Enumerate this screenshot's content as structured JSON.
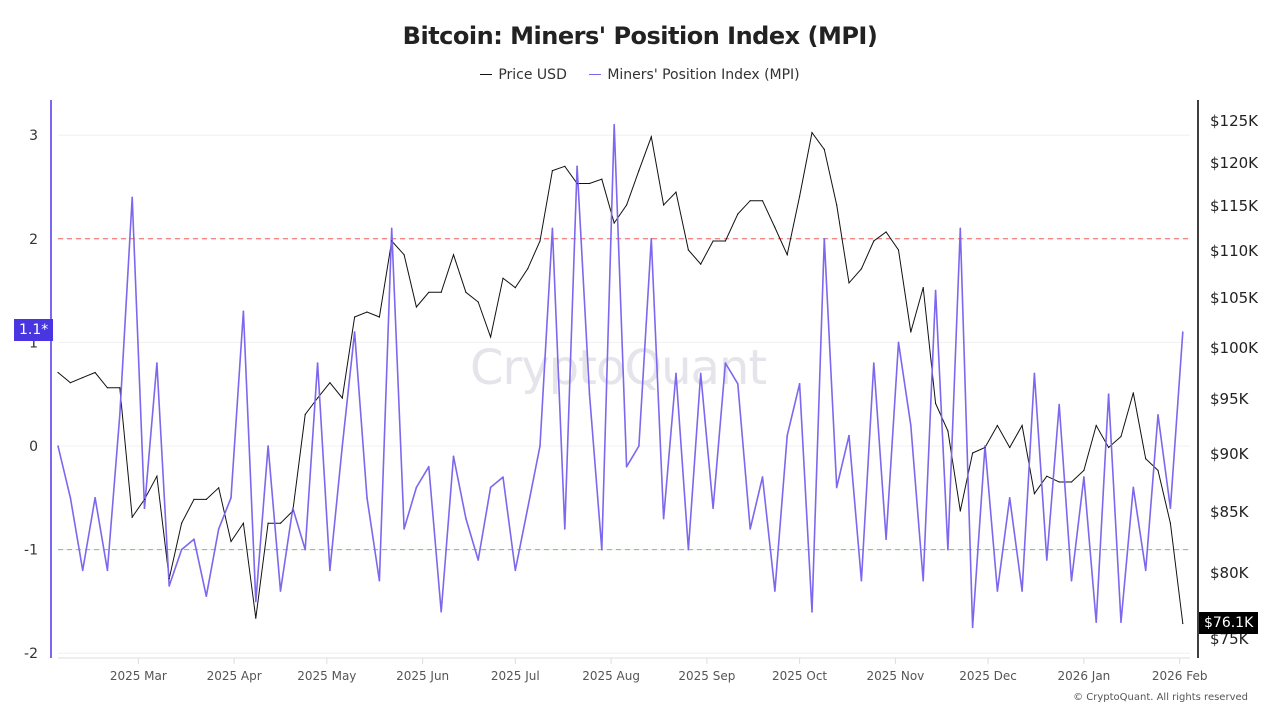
{
  "colors": {
    "price": "#111111",
    "mpi": "#7b68ee",
    "mpi_axis": "#7b68ee",
    "badge_mpi": "#4a36e0",
    "badge_price": "#000000",
    "upper_ref": "#f06060",
    "lower_ref": "#7cc66a"
  },
  "watermark": "CryptoQuant",
  "footer": "© CryptoQuant. All rights reserved",
  "current_mpi_label": "1.1*",
  "current_price_label": "$76.1K",
  "chart_data": {
    "type": "line",
    "title": "Bitcoin: Miners' Position Index (MPI)",
    "legend": [
      "Price USD",
      "Miners' Position Index (MPI)"
    ],
    "legend_position": "top-center",
    "x_tick_labels": [
      "2025 Mar",
      "2025 Apr",
      "2025 May",
      "2025 Jun",
      "2025 Jul",
      "2025 Aug",
      "2025 Sep",
      "2025 Oct",
      "2025 Nov",
      "2025 Dec",
      "2026 Jan",
      "2026 Feb"
    ],
    "x_tick_dates": [
      "2025-03-01",
      "2025-04-01",
      "2025-05-01",
      "2025-06-01",
      "2025-07-01",
      "2025-08-01",
      "2025-09-01",
      "2025-10-01",
      "2025-11-01",
      "2025-12-01",
      "2026-01-01",
      "2026-02-01"
    ],
    "y_left": {
      "ticks": [
        3,
        2,
        1,
        0,
        -1,
        -2
      ],
      "range": [
        -2,
        3.3
      ]
    },
    "y_right": {
      "tick_labels": [
        "$125K",
        "$120K",
        "$115K",
        "$110K",
        "$105K",
        "$100K",
        "$95K",
        "$90K",
        "$85K",
        "$80K",
        "$75K"
      ],
      "tick_values": [
        125,
        120,
        115,
        110,
        105,
        100,
        95,
        90,
        85,
        80,
        75
      ],
      "unit": "USD thousands"
    },
    "reference_lines": [
      {
        "axis": "left",
        "value": 2,
        "style": "dashed",
        "color": "#f06060"
      },
      {
        "axis": "left",
        "value": -1,
        "style": "dashed",
        "color": "#7cc66a"
      }
    ],
    "grid": "horizontal",
    "x": [
      "2025-02-03",
      "2025-02-07",
      "2025-02-11",
      "2025-02-15",
      "2025-02-19",
      "2025-02-23",
      "2025-02-27",
      "2025-03-03",
      "2025-03-07",
      "2025-03-11",
      "2025-03-15",
      "2025-03-19",
      "2025-03-23",
      "2025-03-27",
      "2025-03-31",
      "2025-04-04",
      "2025-04-08",
      "2025-04-12",
      "2025-04-16",
      "2025-04-20",
      "2025-04-24",
      "2025-04-28",
      "2025-05-02",
      "2025-05-06",
      "2025-05-10",
      "2025-05-14",
      "2025-05-18",
      "2025-05-22",
      "2025-05-26",
      "2025-05-30",
      "2025-06-03",
      "2025-06-07",
      "2025-06-11",
      "2025-06-15",
      "2025-06-19",
      "2025-06-23",
      "2025-06-27",
      "2025-07-01",
      "2025-07-05",
      "2025-07-09",
      "2025-07-13",
      "2025-07-17",
      "2025-07-21",
      "2025-07-25",
      "2025-07-29",
      "2025-08-02",
      "2025-08-06",
      "2025-08-10",
      "2025-08-14",
      "2025-08-18",
      "2025-08-22",
      "2025-08-26",
      "2025-08-30",
      "2025-09-03",
      "2025-09-07",
      "2025-09-11",
      "2025-09-15",
      "2025-09-19",
      "2025-09-23",
      "2025-09-27",
      "2025-10-01",
      "2025-10-05",
      "2025-10-09",
      "2025-10-13",
      "2025-10-17",
      "2025-10-21",
      "2025-10-25",
      "2025-10-29",
      "2025-11-02",
      "2025-11-06",
      "2025-11-10",
      "2025-11-14",
      "2025-11-18",
      "2025-11-22",
      "2025-11-26",
      "2025-11-30",
      "2025-12-04",
      "2025-12-08",
      "2025-12-12",
      "2025-12-16",
      "2025-12-20",
      "2025-12-24",
      "2025-12-28",
      "2026-01-01",
      "2026-01-05",
      "2026-01-09",
      "2026-01-13",
      "2026-01-17",
      "2026-01-21",
      "2026-01-25",
      "2026-01-29",
      "2026-02-02"
    ],
    "series": [
      {
        "name": "Price USD",
        "axis": "right",
        "unit": "USD thousands",
        "values": [
          97.5,
          96.5,
          97,
          97.5,
          96,
          96,
          84.5,
          86,
          88,
          79.5,
          84,
          86,
          86,
          87,
          82.5,
          84,
          76.5,
          84,
          84,
          85,
          93.5,
          95,
          96.5,
          95,
          103,
          103.5,
          103,
          111,
          109.5,
          104,
          105.5,
          105.5,
          109.5,
          105.5,
          104.5,
          101,
          107,
          106,
          108,
          111,
          119,
          119.5,
          117.5,
          117.5,
          118,
          113,
          115,
          119,
          123,
          115,
          116.5,
          110,
          108.5,
          111,
          111,
          114,
          115.5,
          115.5,
          112.5,
          109.5,
          116,
          123.5,
          121.5,
          115,
          106.5,
          108,
          111,
          112,
          110,
          101.5,
          106,
          94.5,
          92,
          85,
          90,
          90.5,
          92.5,
          90.5,
          92.5,
          86.5,
          88,
          87.5,
          87.5,
          88.5,
          92.5,
          90.5,
          91.5,
          95.5,
          89.5,
          88.5,
          84,
          76.1
        ]
      },
      {
        "name": "Miners' Position Index (MPI)",
        "axis": "left",
        "values": [
          0.0,
          -0.5,
          -1.2,
          -0.5,
          -1.2,
          0.3,
          2.4,
          -0.6,
          0.8,
          -1.35,
          -1.0,
          -0.9,
          -1.45,
          -0.8,
          -0.5,
          1.3,
          -1.5,
          0.0,
          -1.4,
          -0.6,
          -1.0,
          0.8,
          -1.2,
          0.0,
          1.1,
          -0.5,
          -1.3,
          2.1,
          -0.8,
          -0.4,
          -0.2,
          -1.6,
          -0.1,
          -0.7,
          -1.1,
          -0.4,
          -0.3,
          -1.2,
          -0.6,
          0.0,
          2.1,
          -0.8,
          2.7,
          0.5,
          -1.0,
          3.1,
          -0.2,
          0.0,
          2.0,
          -0.7,
          0.7,
          -1.0,
          0.7,
          -0.6,
          0.8,
          0.6,
          -0.8,
          -0.3,
          -1.4,
          0.1,
          0.6,
          -1.6,
          2.0,
          -0.4,
          0.1,
          -1.3,
          0.8,
          -0.9,
          1.0,
          0.2,
          -1.3,
          1.5,
          -1.0,
          2.1,
          -1.75,
          0.0,
          -1.4,
          -0.5,
          -1.4,
          0.7,
          -1.1,
          0.4,
          -1.3,
          -0.3,
          -1.7,
          0.5,
          -1.7,
          -0.4,
          -1.2,
          0.3,
          -0.6,
          1.1
        ]
      }
    ]
  }
}
